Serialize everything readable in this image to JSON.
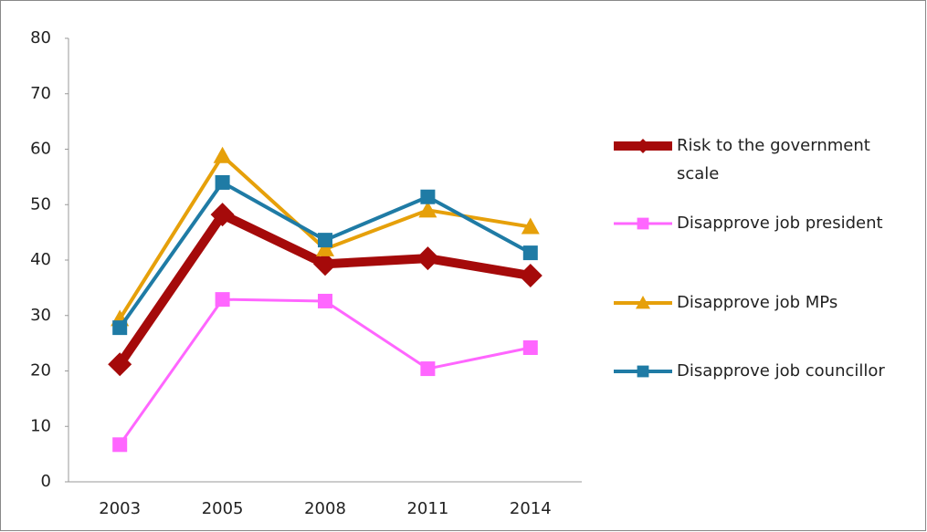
{
  "chart_data": {
    "type": "line",
    "categories": [
      "2003",
      "2005",
      "2008",
      "2011",
      "2014"
    ],
    "series": [
      {
        "name": "Risk to the government scale",
        "color": "#a50a0a",
        "marker": "diamond",
        "line_width": 10,
        "values": [
          21.2,
          48.2,
          39.3,
          40.3,
          37.2
        ]
      },
      {
        "name": "Disapprove job president",
        "color": "#ff66ff",
        "marker": "square",
        "line_width": 3,
        "values": [
          6.7,
          32.9,
          32.6,
          20.4,
          24.2
        ]
      },
      {
        "name": "Disapprove job MPs",
        "color": "#e6a00a",
        "marker": "triangle",
        "line_width": 4,
        "values": [
          29.4,
          58.8,
          42,
          49,
          46
        ]
      },
      {
        "name": "Disapprove job councillor",
        "color": "#1f7ba5",
        "marker": "square",
        "line_width": 4,
        "values": [
          27.8,
          54,
          43.6,
          51.4,
          41.3
        ]
      }
    ],
    "ylim": [
      0,
      80
    ],
    "yticks": [
      0,
      10,
      20,
      30,
      40,
      50,
      60,
      70,
      80
    ],
    "legend": "right"
  }
}
